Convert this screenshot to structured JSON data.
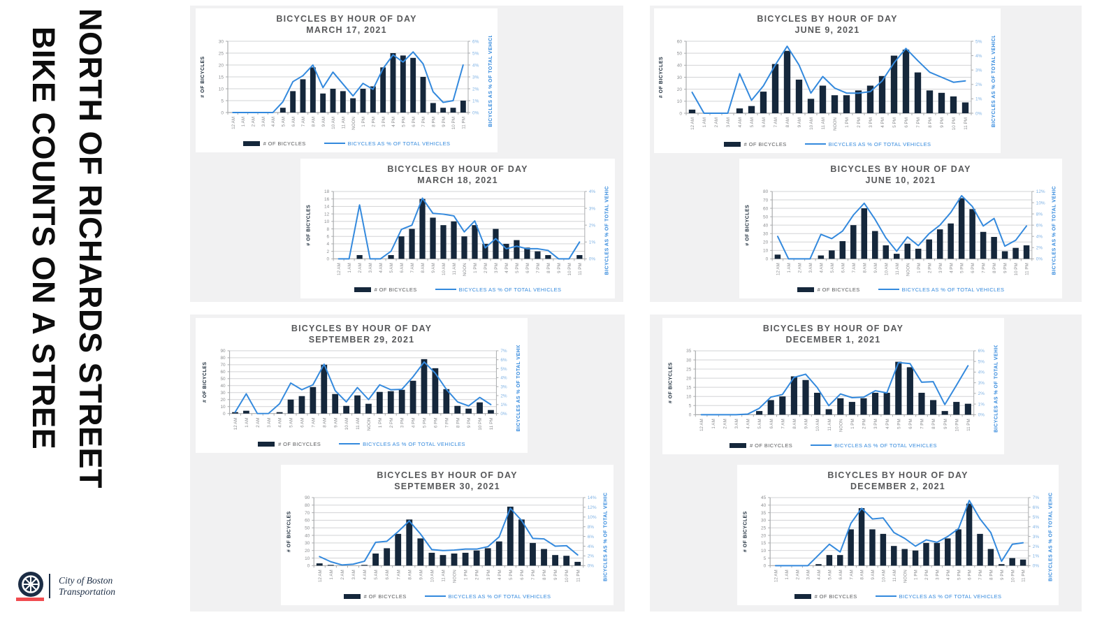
{
  "page": {
    "title_line1": "BIKE COUNTS ON A STREE",
    "title_line2": "NORTH OF RICHARDS STREET"
  },
  "footer_logo": {
    "icon": "bike-wheel-icon",
    "org_line1": "City of Boston",
    "org_line2": "Transportation",
    "navy": "#1c2d45",
    "red": "#f14c50"
  },
  "chart_common": {
    "title": "BICYCLES BY HOUR OF DAY",
    "left_axis_label": "# OF BICYCLES",
    "right_axis_label": "BICYCLES AS % OF TOTAL VEHICLES",
    "legend_bar_label": "# OF BICYCLES",
    "legend_line_label": "BICYCLES AS % OF TOTAL VEHICLES",
    "hours": [
      "12 AM",
      "1 AM",
      "2 AM",
      "3 AM",
      "4 AM",
      "5 AM",
      "6 AM",
      "7 AM",
      "8 AM",
      "9 AM",
      "10 AM",
      "11 AM",
      "NOON",
      "1 PM",
      "2 PM",
      "3 PM",
      "4 PM",
      "5 PM",
      "6 PM",
      "7 PM",
      "8 PM",
      "9 PM",
      "10 PM",
      "11 PM"
    ],
    "colors": {
      "bar": "#15273b",
      "line": "#3389dd",
      "grid": "#d2d3d5",
      "axis": "#a9abad",
      "tick_label": "#8b8d90",
      "right_tick_label": "#7fb2e4",
      "left_axis_title": "#1c2b3a",
      "right_axis_title": "#3389dd",
      "chart_title": "#57585a",
      "panel_gray": "#f1f1f2"
    }
  },
  "chart_data": [
    {
      "type": "bar+line",
      "date": "MARCH 17, 2021",
      "left_axis": {
        "max": 30,
        "step": 5
      },
      "right_axis": {
        "max": 6,
        "step": 1,
        "unit": "%"
      },
      "bicycles": [
        0,
        0,
        0,
        0,
        0,
        2,
        9,
        14,
        19,
        8,
        10,
        9,
        6,
        10,
        11,
        19,
        25,
        24,
        23,
        15,
        4,
        2,
        2,
        5
      ],
      "pct_of_vehicles": [
        0,
        0,
        0,
        0,
        0,
        0.9,
        2.6,
        3.1,
        4.0,
        2.1,
        3.4,
        2.4,
        1.4,
        2.45,
        1.95,
        3.7,
        4.85,
        4.25,
        5.1,
        4.1,
        1.75,
        0.85,
        1.0,
        4.0
      ]
    },
    {
      "type": "bar+line",
      "date": "MARCH 18, 2021",
      "left_axis": {
        "max": 18,
        "step": 2
      },
      "right_axis": {
        "max": 4,
        "step": 1,
        "unit": "%"
      },
      "bicycles": [
        0,
        0,
        1,
        0,
        0,
        1,
        6,
        8,
        16,
        11,
        9,
        10,
        6,
        9,
        4,
        8,
        4,
        5,
        3,
        2,
        1,
        0,
        0,
        1
      ],
      "pct_of_vehicles": [
        0,
        0,
        3.2,
        0,
        0,
        0.45,
        1.75,
        2.0,
        3.6,
        2.7,
        2.65,
        2.55,
        1.6,
        2.25,
        0.65,
        1.2,
        0.6,
        0.75,
        0.6,
        0.6,
        0.5,
        0,
        0,
        1.0
      ]
    },
    {
      "type": "bar+line",
      "date": "JUNE 9, 2021",
      "left_axis": {
        "max": 60,
        "step": 10
      },
      "right_axis": {
        "max": 5,
        "step": 1,
        "unit": "%"
      },
      "bicycles": [
        3,
        0,
        0,
        0,
        4,
        6,
        18,
        41,
        52,
        28,
        12,
        23,
        15,
        15,
        19,
        23,
        31,
        48,
        53,
        34,
        19,
        17,
        14,
        9
      ],
      "pct_of_vehicles": [
        1.45,
        0,
        0,
        0,
        2.75,
        0.9,
        1.9,
        3.35,
        4.65,
        3.35,
        1.4,
        2.55,
        1.75,
        1.4,
        1.4,
        1.5,
        2.25,
        3.5,
        4.5,
        3.65,
        2.85,
        2.5,
        2.15,
        2.25
      ]
    },
    {
      "type": "bar+line",
      "date": "JUNE 10, 2021",
      "left_axis": {
        "max": 80,
        "step": 10
      },
      "right_axis": {
        "max": 12,
        "step": 2,
        "unit": "%"
      },
      "bicycles": [
        5,
        0,
        0,
        0,
        4,
        10,
        21,
        40,
        60,
        33,
        16,
        6,
        18,
        12,
        23,
        35,
        42,
        72,
        59,
        32,
        26,
        9,
        13,
        16
      ],
      "pct_of_vehicles": [
        4.0,
        0,
        0,
        0,
        4.35,
        3.6,
        4.95,
        7.8,
        9.9,
        7.05,
        3.75,
        1.35,
        3.9,
        2.35,
        4.5,
        6.0,
        8.25,
        11.25,
        9.3,
        5.85,
        7.2,
        2.25,
        3.3,
        5.85
      ]
    },
    {
      "type": "bar+line",
      "date": "SEPTEMBER 29, 2021",
      "left_axis": {
        "max": 90,
        "step": 10
      },
      "right_axis": {
        "max": 7,
        "step": 1,
        "unit": "%"
      },
      "bicycles": [
        2,
        4,
        0,
        0,
        2,
        20,
        25,
        38,
        70,
        28,
        11,
        26,
        14,
        31,
        32,
        34,
        47,
        78,
        65,
        35,
        11,
        7,
        16,
        5
      ],
      "pct_of_vehicles": [
        0.15,
        2.2,
        0,
        0,
        1.1,
        3.4,
        2.65,
        3.2,
        5.5,
        2.55,
        1.3,
        2.9,
        1.55,
        3.2,
        2.65,
        2.7,
        4.1,
        5.75,
        4.5,
        2.7,
        1.3,
        0.85,
        1.8,
        1.0
      ]
    },
    {
      "type": "bar+line",
      "date": "SEPTEMBER 30, 2021",
      "left_axis": {
        "max": 90,
        "step": 10
      },
      "right_axis": {
        "max": 14,
        "step": 2,
        "unit": "%"
      },
      "bicycles": [
        3,
        1,
        0,
        0,
        1,
        16,
        23,
        42,
        61,
        36,
        17,
        14,
        16,
        17,
        20,
        23,
        32,
        78,
        61,
        30,
        22,
        14,
        13,
        5
      ],
      "pct_of_vehicles": [
        1.85,
        0.8,
        0.15,
        0.3,
        0.9,
        4.8,
        5.0,
        7.0,
        9.2,
        6.5,
        3.3,
        3.1,
        3.2,
        3.4,
        3.4,
        3.9,
        5.9,
        11.8,
        9.3,
        5.6,
        5.5,
        4.0,
        4.1,
        2.2
      ]
    },
    {
      "type": "bar+line",
      "date": "DECEMBER 1, 2021",
      "left_axis": {
        "max": 35,
        "step": 5
      },
      "right_axis": {
        "max": 6,
        "step": 1,
        "unit": "%"
      },
      "bicycles": [
        0,
        0,
        0,
        0,
        0,
        2,
        8,
        10,
        21,
        19,
        12,
        3,
        9,
        7,
        9,
        12,
        12,
        29,
        26,
        12,
        8,
        2,
        7,
        6
      ],
      "pct_of_vehicles": [
        0,
        0,
        0,
        0,
        0.05,
        0.6,
        1.65,
        1.9,
        3.5,
        3.8,
        2.55,
        0.85,
        1.95,
        1.6,
        1.65,
        2.25,
        2.05,
        4.9,
        4.8,
        3.05,
        3.1,
        0.95,
        2.75,
        4.6
      ]
    },
    {
      "type": "bar+line",
      "date": "DECEMBER 2, 2021",
      "left_axis": {
        "max": 45,
        "step": 5
      },
      "right_axis": {
        "max": 7,
        "step": 1,
        "unit": "%"
      },
      "bicycles": [
        0,
        0,
        0,
        0,
        1,
        7,
        7,
        24,
        38,
        24,
        21,
        13,
        11,
        10,
        15,
        15,
        18,
        24,
        41,
        21,
        11,
        1,
        5,
        4
      ],
      "pct_of_vehicles": [
        0,
        0,
        0,
        0,
        1.1,
        2.2,
        1.4,
        4.35,
        5.9,
        4.8,
        4.9,
        3.4,
        2.8,
        2.0,
        2.65,
        2.4,
        3.0,
        3.8,
        6.7,
        4.8,
        3.4,
        0.45,
        2.2,
        2.35
      ]
    }
  ]
}
